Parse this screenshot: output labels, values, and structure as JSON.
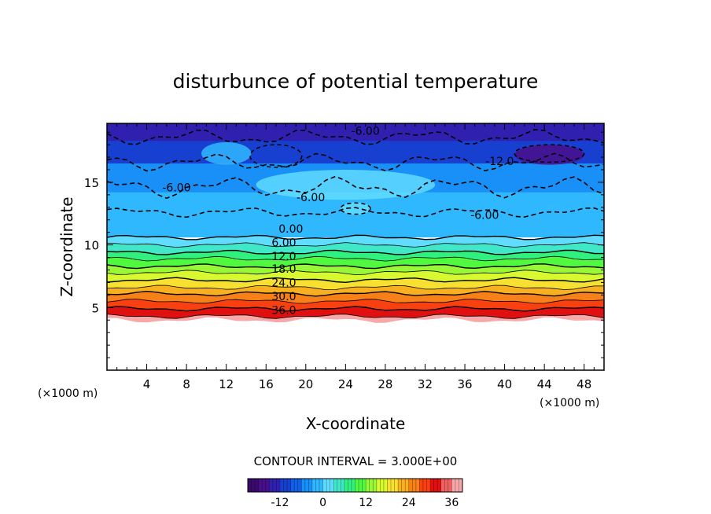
{
  "chart_data": {
    "type": "heatmap",
    "title": "disturbunce of potential temperature",
    "xlabel": "X-coordinate",
    "ylabel": "Z-coordinate",
    "x_unit": "(×1000 m)",
    "y_unit": "(×1000 m)",
    "xlim": [
      0,
      50
    ],
    "ylim": [
      0,
      19.7
    ],
    "x_ticks": [
      4,
      8,
      12,
      16,
      20,
      24,
      28,
      32,
      36,
      40,
      44,
      48
    ],
    "y_ticks": [
      5,
      10,
      15
    ],
    "contour_interval_text": "CONTOUR INTERVAL = 3.000E+00",
    "colorbar": {
      "min": -21,
      "max": 39,
      "step": 3,
      "ticks": [
        -12,
        0,
        12,
        24,
        36
      ],
      "colors": [
        "#3a0a6a",
        "#4a0e8a",
        "#3020b0",
        "#1840d0",
        "#1060e8",
        "#1890f8",
        "#30b8ff",
        "#60dcff",
        "#40e8c8",
        "#30f080",
        "#50f840",
        "#98f838",
        "#d8f830",
        "#f8e030",
        "#f8b020",
        "#f88018",
        "#f84010",
        "#e01010",
        "#f06060",
        "#f8a8a8"
      ]
    },
    "stable_layers": [
      {
        "z_base": 10.6,
        "value": 0
      },
      {
        "z_base": 10.0,
        "value": 3
      },
      {
        "z_base": 9.4,
        "value": 6
      },
      {
        "z_base": 8.9,
        "value": 9
      },
      {
        "z_base": 8.3,
        "value": 12
      },
      {
        "z_base": 7.8,
        "value": 15
      },
      {
        "z_base": 7.2,
        "value": 18
      },
      {
        "z_base": 6.6,
        "value": 21
      },
      {
        "z_base": 6.1,
        "value": 24
      },
      {
        "z_base": 5.5,
        "value": 27
      },
      {
        "z_base": 4.9,
        "value": 30
      },
      {
        "z_base": 4.3,
        "value": 36
      }
    ],
    "contour_labels": [
      {
        "x": 26,
        "z": 19.1,
        "text": "-6.00"
      },
      {
        "x": 39.5,
        "z": 16.7,
        "text": "-12.0"
      },
      {
        "x": 7,
        "z": 14.6,
        "text": "-6.00"
      },
      {
        "x": 20.5,
        "z": 13.8,
        "text": "-6.00"
      },
      {
        "x": 38,
        "z": 12.4,
        "text": "-6.00"
      },
      {
        "x": 18.5,
        "z": 11.3,
        "text": "0.00"
      },
      {
        "x": 17.8,
        "z": 10.2,
        "text": "6.00"
      },
      {
        "x": 17.8,
        "z": 9.1,
        "text": "12.0"
      },
      {
        "x": 17.8,
        "z": 8.1,
        "text": "18.0"
      },
      {
        "x": 17.8,
        "z": 7.0,
        "text": "24.0"
      },
      {
        "x": 17.8,
        "z": 5.9,
        "text": "30.0"
      },
      {
        "x": 17.8,
        "z": 4.8,
        "text": "36.0"
      }
    ]
  }
}
